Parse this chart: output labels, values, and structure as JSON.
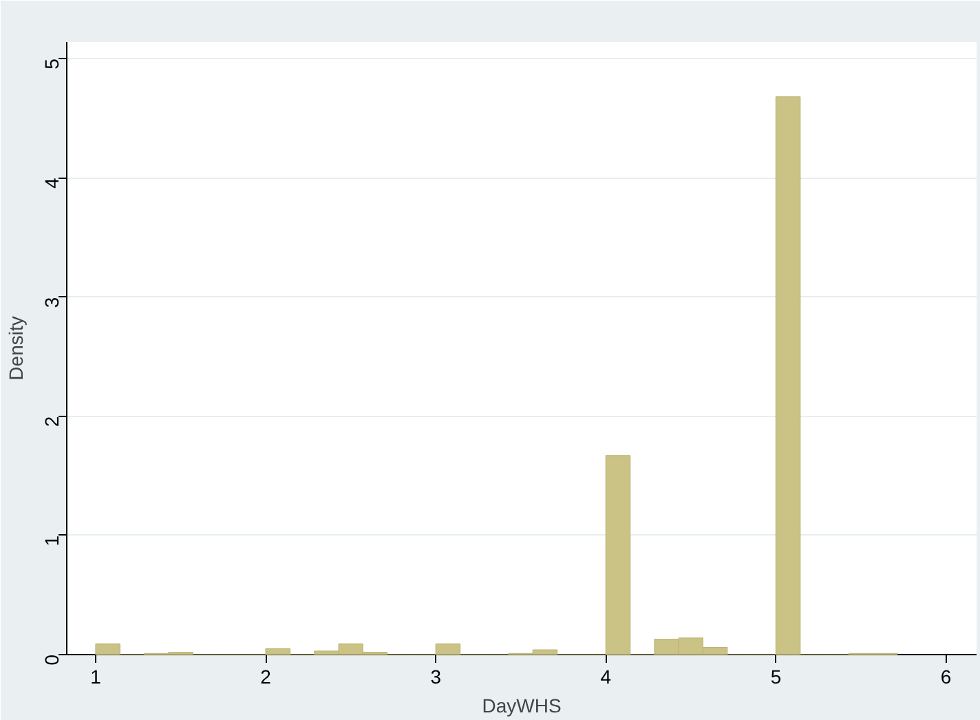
{
  "chart_data": {
    "type": "histogram",
    "xlabel": "DayWHS",
    "ylabel": "Density",
    "bins": [
      1,
      1.143,
      1.286,
      1.429,
      1.571,
      1.714,
      1.857,
      2,
      2.143,
      2.286,
      2.429,
      2.571,
      2.714,
      2.857,
      3,
      3.143,
      3.286,
      3.429,
      3.571,
      3.714,
      3.857,
      4,
      4.143,
      4.286,
      4.429,
      4.571,
      4.714,
      4.857,
      5,
      5.143,
      5.286,
      5.429,
      5.571,
      5.714
    ],
    "values": [
      0.09,
      0,
      0.01,
      0.02,
      0,
      0,
      0,
      0.05,
      0,
      0.03,
      0.09,
      0.02,
      0,
      0,
      0.09,
      0,
      0,
      0.01,
      0.04,
      0,
      0,
      1.67,
      0,
      0.13,
      0.14,
      0.06,
      0,
      0,
      4.68,
      0,
      0,
      0.01,
      0.01
    ],
    "color": "#cbc385",
    "xlim": [
      0.83,
      6.18
    ],
    "xticks": [
      1,
      2,
      3,
      4,
      5,
      6
    ],
    "ylim": [
      0,
      5.14
    ],
    "yticks": [
      0,
      1,
      2,
      3,
      4,
      5
    ],
    "grid": "y"
  }
}
